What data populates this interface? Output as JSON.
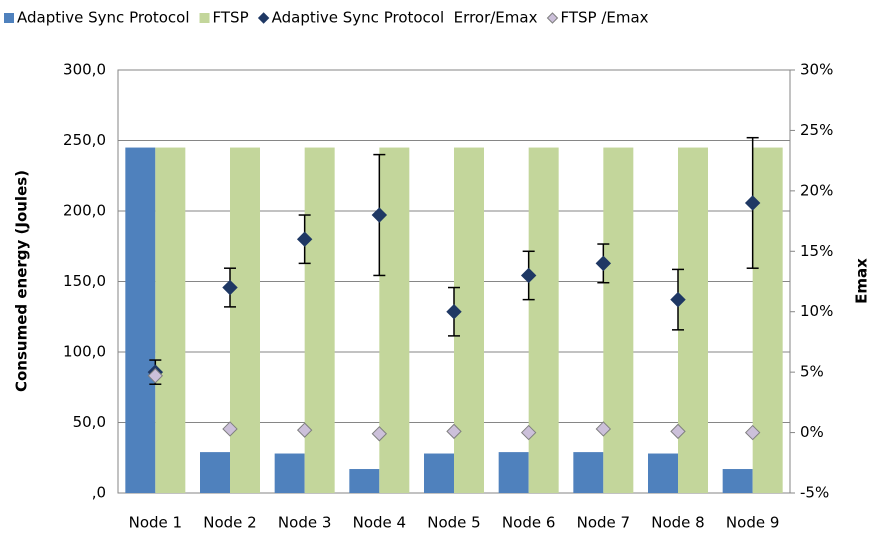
{
  "chart_data": {
    "type": "bar",
    "ylabel": "Consumed energy (Joules)",
    "y2label": "Emax",
    "categories": [
      "Node 1",
      "Node 2",
      "Node 3",
      "Node 4",
      "Node 5",
      "Node 6",
      "Node 7",
      "Node 8",
      "Node 9"
    ],
    "series": [
      {
        "name": "Adaptive Sync Protocol",
        "type": "bar",
        "color": "#4f81bd",
        "values": [
          245,
          29,
          28,
          17,
          28,
          29,
          29,
          28,
          17
        ]
      },
      {
        "name": "FTSP",
        "type": "bar",
        "color": "#c3d69b",
        "values": [
          245,
          245,
          245,
          245,
          245,
          245,
          245,
          245,
          245
        ]
      },
      {
        "name": "Adaptive Sync Protocol  Error/Emax",
        "type": "scatter",
        "axis": "y2",
        "color": "#1f3864",
        "values": [
          5,
          12,
          16,
          18,
          10,
          13,
          14,
          11,
          19
        ],
        "errors": [
          1,
          1.6,
          2,
          5,
          2,
          2,
          1.6,
          2.5,
          5.4
        ]
      },
      {
        "name": "FTSP /Emax",
        "type": "scatter",
        "axis": "y2",
        "color": "#ccc0da",
        "values": [
          4.7,
          0.3,
          0.2,
          -0.1,
          0.1,
          0,
          0.3,
          0.1,
          0
        ]
      }
    ],
    "ylim": [
      0,
      300
    ],
    "yticks": [
      {
        "value": 0,
        "label": ",0"
      },
      {
        "value": 50,
        "label": "50,0"
      },
      {
        "value": 100,
        "label": "100,0"
      },
      {
        "value": 150,
        "label": "150,0"
      },
      {
        "value": 200,
        "label": "200,0"
      },
      {
        "value": 250,
        "label": "250,0"
      },
      {
        "value": 300,
        "label": "300,0"
      }
    ],
    "y2lim": [
      -5,
      30
    ],
    "y2ticks": [
      {
        "value": -5,
        "label": "-5%"
      },
      {
        "value": 0,
        "label": "0%"
      },
      {
        "value": 5,
        "label": "5%"
      },
      {
        "value": 10,
        "label": "10%"
      },
      {
        "value": 15,
        "label": "15%"
      },
      {
        "value": 20,
        "label": "20%"
      },
      {
        "value": 25,
        "label": "25%"
      },
      {
        "value": 30,
        "label": "30%"
      }
    ],
    "grid": true,
    "legend": "top"
  }
}
